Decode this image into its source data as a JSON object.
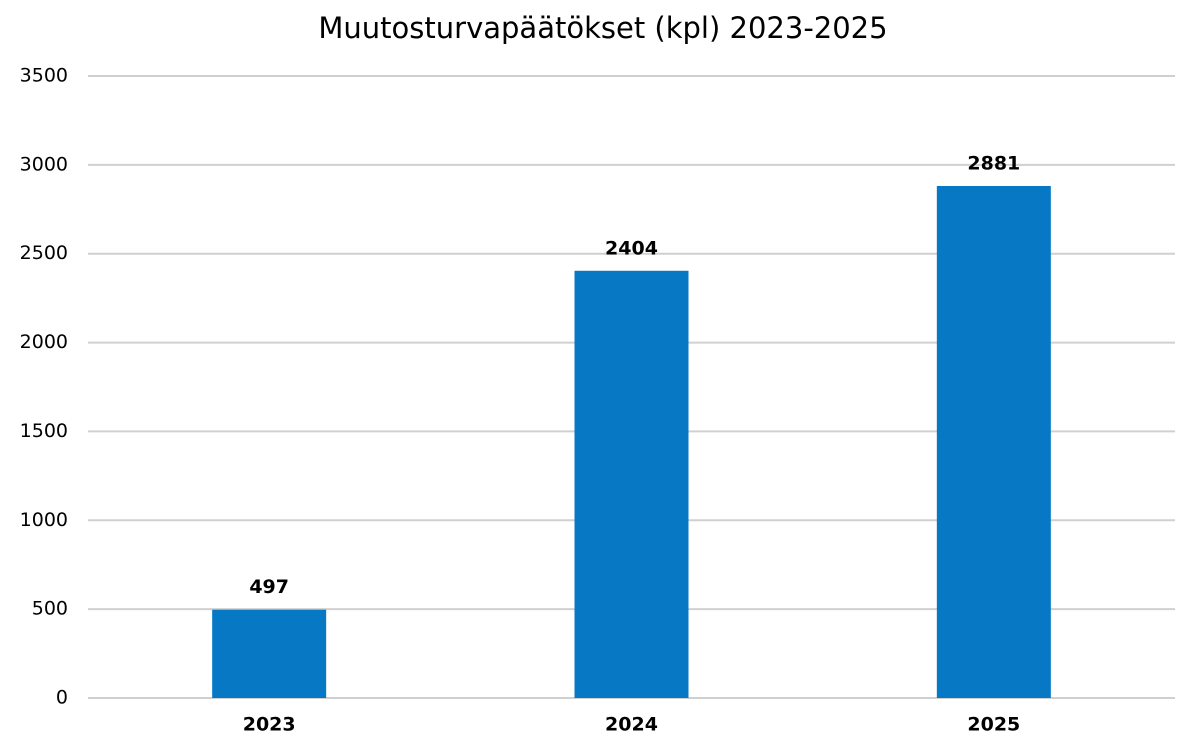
{
  "chart_data": {
    "type": "bar",
    "title": "Muutosturvapäätökset (kpl) 2023-2025",
    "categories": [
      "2023",
      "2024",
      "2025"
    ],
    "values": [
      497,
      2404,
      2881
    ],
    "color": "#0779c4",
    "ylim": [
      0,
      3500
    ],
    "yticks": [
      0,
      500,
      1000,
      1500,
      2000,
      2500,
      3000,
      3500
    ],
    "grid": true
  }
}
